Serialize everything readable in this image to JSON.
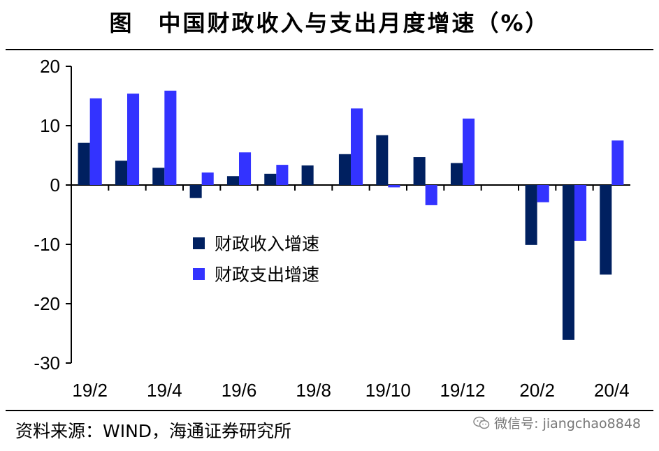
{
  "title": "图　中国财政收入与支出月度增速（%）",
  "source": "资料来源：WIND，海通证券研究所",
  "watermark": {
    "icon": "wechat-icon",
    "text": "微信号: jiangchao8848"
  },
  "chart_data": {
    "type": "bar",
    "categories": [
      "19/2",
      "19/3",
      "19/4",
      "19/5",
      "19/6",
      "19/7",
      "19/8",
      "19/9",
      "19/10",
      "19/11",
      "19/12",
      "20/1",
      "20/2",
      "20/3",
      "20/4"
    ],
    "x_tick_labels": [
      "19/2",
      "19/4",
      "19/6",
      "19/8",
      "19/10",
      "19/12",
      "20/2",
      "20/4"
    ],
    "y_ticks": [
      20,
      10,
      0,
      -10,
      -20,
      -30
    ],
    "ylim": [
      -30,
      20
    ],
    "series": [
      {
        "name": "财政收入增速",
        "color": "#002060",
        "values": [
          7.1,
          4.1,
          2.9,
          -2.2,
          1.5,
          1.9,
          3.3,
          5.2,
          8.4,
          4.7,
          3.7,
          null,
          -10.1,
          -26.1,
          -15.1
        ]
      },
      {
        "name": "财政支出增速",
        "color": "#3333FF",
        "values": [
          14.6,
          15.4,
          15.9,
          2.1,
          5.5,
          3.4,
          null,
          12.9,
          -0.4,
          -3.4,
          11.2,
          null,
          -2.9,
          -9.4,
          7.5
        ]
      }
    ],
    "legend_position": "center"
  }
}
